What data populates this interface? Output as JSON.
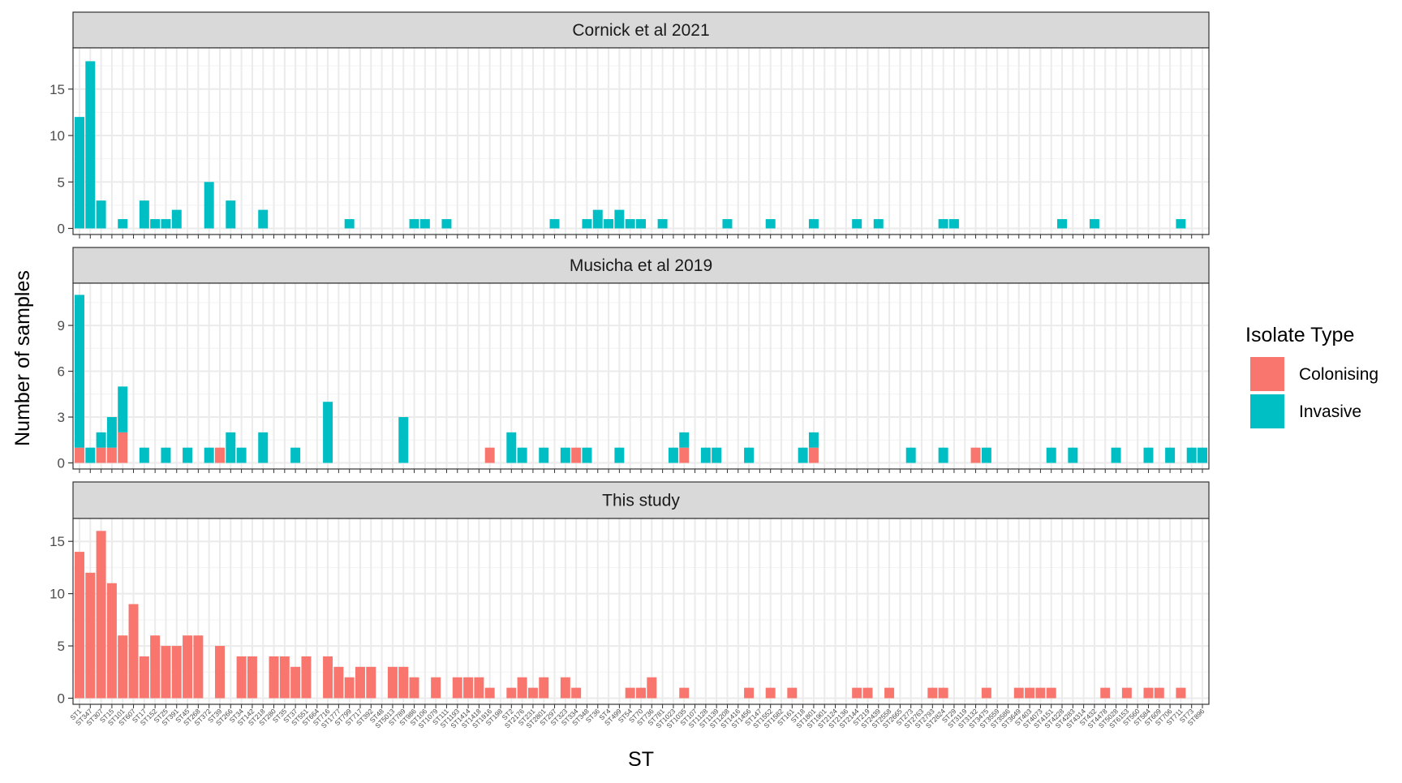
{
  "chart_data": {
    "type": "bar",
    "stacked": true,
    "xlabel": "ST",
    "ylabel": "Number of samples",
    "legend": {
      "title": "Isolate Type",
      "position": "right",
      "items": [
        {
          "name": "Colonising",
          "color": "#F8766D"
        },
        {
          "name": "Invasive",
          "color": "#00BFC4"
        }
      ]
    },
    "grid": true,
    "categories": [
      "ST1",
      "ST347",
      "ST307",
      "ST15",
      "ST101",
      "ST607",
      "ST17",
      "ST152",
      "ST25",
      "ST391",
      "ST45",
      "ST268",
      "ST372",
      "ST39",
      "ST266",
      "ST34",
      "ST142",
      "ST218",
      "ST280",
      "ST35",
      "ST37",
      "ST551",
      "ST664",
      "ST716",
      "ST1777",
      "ST799",
      "ST717",
      "ST392",
      "ST48",
      "ST5013",
      "ST789",
      "ST986",
      "ST106",
      "ST1079",
      "ST111",
      "ST1193",
      "ST1414",
      "ST1418",
      "ST1916",
      "ST198",
      "ST2",
      "ST2176",
      "ST231",
      "ST2801",
      "ST297",
      "ST323",
      "ST334",
      "ST348",
      "ST36",
      "ST4",
      "ST499",
      "ST54",
      "ST70",
      "ST736",
      "ST781",
      "ST1023",
      "ST1035",
      "ST107",
      "ST1128",
      "ST1139",
      "ST1208",
      "ST1416",
      "ST1456",
      "ST147",
      "ST1552",
      "ST1582",
      "ST161",
      "ST18",
      "ST1801",
      "ST1901",
      "ST2124",
      "ST2136",
      "ST2144",
      "ST219",
      "ST2439",
      "ST2558",
      "ST2665",
      "ST273",
      "ST2763",
      "ST2793",
      "ST2824",
      "ST29",
      "ST3119",
      "ST3132",
      "ST3475",
      "ST3559",
      "ST3586",
      "ST3649",
      "ST403",
      "ST4073",
      "ST4151",
      "ST4228",
      "ST4283",
      "ST4314",
      "ST432",
      "ST4478",
      "ST5028",
      "ST6153",
      "ST560",
      "ST584",
      "ST609",
      "ST706",
      "ST711",
      "ST73",
      "ST896"
    ],
    "panels": [
      {
        "title": "Cornick et al 2021",
        "ylim": [
          0,
          19
        ],
        "yticks": [
          0,
          5,
          10,
          15
        ],
        "series": [
          {
            "name": "Colonising",
            "values": [
              0,
              0,
              0,
              0,
              0,
              0,
              0,
              0,
              0,
              0,
              0,
              0,
              0,
              0,
              0,
              0,
              0,
              0,
              0,
              0,
              0,
              0,
              0,
              0,
              0,
              0,
              0,
              0,
              0,
              0,
              0,
              0,
              0,
              0,
              0,
              0,
              0,
              0,
              0,
              0,
              0,
              0,
              0,
              0,
              0,
              0,
              0,
              0,
              0,
              0,
              0,
              0,
              0,
              0,
              0,
              0,
              0,
              0,
              0,
              0,
              0,
              0,
              0,
              0,
              0,
              0,
              0,
              0,
              0,
              0,
              0,
              0,
              0,
              0,
              0,
              0,
              0,
              0,
              0,
              0,
              0,
              0,
              0,
              0,
              0,
              0,
              0,
              0,
              0,
              0,
              0,
              0,
              0,
              0,
              0,
              0,
              0,
              0,
              0,
              0,
              0,
              0,
              0,
              0
            ]
          },
          {
            "name": "Invasive",
            "values": [
              12,
              18,
              3,
              0,
              1,
              0,
              3,
              1,
              1,
              2,
              0,
              0,
              5,
              0,
              3,
              0,
              0,
              2,
              0,
              0,
              0,
              0,
              0,
              0,
              0,
              1,
              0,
              0,
              0,
              0,
              0,
              1,
              1,
              0,
              1,
              0,
              0,
              0,
              0,
              0,
              0,
              0,
              0,
              0,
              1,
              0,
              0,
              1,
              2,
              1,
              2,
              1,
              1,
              0,
              1,
              0,
              0,
              0,
              0,
              0,
              1,
              0,
              0,
              0,
              1,
              0,
              0,
              0,
              1,
              0,
              0,
              0,
              1,
              0,
              1,
              0,
              0,
              0,
              0,
              0,
              1,
              1,
              0,
              0,
              0,
              0,
              0,
              0,
              0,
              0,
              0,
              1,
              0,
              0,
              1,
              0,
              0,
              0,
              0,
              0,
              0,
              0,
              1,
              0,
              0
            ]
          }
        ]
      },
      {
        "title": "Musicha et al 2019",
        "ylim": [
          0,
          11.5
        ],
        "yticks": [
          0,
          3,
          6,
          9
        ],
        "series": [
          {
            "name": "Colonising",
            "values": [
              1,
              0,
              1,
              1,
              2,
              0,
              0,
              0,
              0,
              0,
              0,
              0,
              0,
              1,
              0,
              0,
              0,
              0,
              0,
              0,
              0,
              0,
              0,
              0,
              0,
              0,
              0,
              0,
              0,
              0,
              0,
              0,
              0,
              0,
              0,
              0,
              0,
              0,
              1,
              0,
              0,
              0,
              0,
              0,
              0,
              0,
              1,
              0,
              0,
              0,
              0,
              0,
              0,
              0,
              0,
              0,
              1,
              0,
              0,
              0,
              0,
              0,
              0,
              0,
              0,
              0,
              0,
              0,
              1,
              0,
              0,
              0,
              0,
              0,
              0,
              0,
              0,
              0,
              0,
              0,
              0,
              0,
              0,
              1,
              0,
              0,
              0,
              0,
              0,
              0,
              0,
              0,
              0,
              0,
              0,
              0,
              0,
              0,
              0,
              0,
              0,
              0,
              0,
              0,
              0
            ]
          },
          {
            "name": "Invasive",
            "values": [
              10,
              1,
              1,
              2,
              3,
              0,
              1,
              0,
              1,
              0,
              1,
              0,
              1,
              0,
              2,
              1,
              0,
              2,
              0,
              0,
              1,
              0,
              0,
              4,
              0,
              0,
              0,
              0,
              0,
              0,
              3,
              0,
              0,
              0,
              0,
              0,
              0,
              0,
              0,
              0,
              2,
              1,
              0,
              1,
              0,
              1,
              0,
              1,
              0,
              0,
              1,
              0,
              0,
              0,
              0,
              1,
              1,
              0,
              1,
              1,
              0,
              0,
              1,
              0,
              0,
              0,
              0,
              1,
              1,
              0,
              0,
              0,
              0,
              0,
              0,
              0,
              0,
              1,
              0,
              0,
              1,
              0,
              0,
              0,
              1,
              0,
              0,
              0,
              0,
              0,
              1,
              0,
              1,
              0,
              0,
              0,
              1,
              0,
              0,
              1,
              0,
              1,
              0,
              1,
              1
            ]
          }
        ]
      },
      {
        "title": "This study",
        "ylim": [
          0,
          16.8
        ],
        "yticks": [
          0,
          5,
          10,
          15
        ],
        "series": [
          {
            "name": "Colonising",
            "values": [
              14,
              12,
              16,
              11,
              6,
              9,
              4,
              6,
              5,
              5,
              6,
              6,
              0,
              5,
              0,
              4,
              4,
              0,
              4,
              4,
              3,
              4,
              0,
              4,
              3,
              2,
              3,
              3,
              0,
              3,
              3,
              2,
              0,
              2,
              0,
              2,
              2,
              2,
              1,
              0,
              1,
              2,
              1,
              2,
              0,
              2,
              1,
              0,
              0,
              0,
              0,
              1,
              1,
              2,
              0,
              0,
              1,
              0,
              0,
              0,
              0,
              0,
              1,
              0,
              1,
              0,
              1,
              0,
              0,
              0,
              0,
              0,
              1,
              1,
              0,
              1,
              0,
              0,
              0,
              1,
              1,
              0,
              0,
              0,
              1,
              0,
              0,
              1,
              1,
              1,
              1,
              0,
              0,
              0,
              0,
              1,
              0,
              1,
              0,
              1,
              1,
              0,
              1,
              0,
              0
            ]
          },
          {
            "name": "Invasive",
            "values": [
              0,
              0,
              0,
              0,
              0,
              0,
              0,
              0,
              0,
              0,
              0,
              0,
              0,
              0,
              0,
              0,
              0,
              0,
              0,
              0,
              0,
              0,
              0,
              0,
              0,
              0,
              0,
              0,
              0,
              0,
              0,
              0,
              0,
              0,
              0,
              0,
              0,
              0,
              0,
              0,
              0,
              0,
              0,
              0,
              0,
              0,
              0,
              0,
              0,
              0,
              0,
              0,
              0,
              0,
              0,
              0,
              0,
              0,
              0,
              0,
              0,
              0,
              0,
              0,
              0,
              0,
              0,
              0,
              0,
              0,
              0,
              0,
              0,
              0,
              0,
              0,
              0,
              0,
              0,
              0,
              0,
              0,
              0,
              0,
              0,
              0,
              0,
              0,
              0,
              0,
              0,
              0,
              0,
              0,
              0,
              0,
              0,
              0,
              0,
              0,
              0,
              0,
              0,
              0,
              0
            ]
          }
        ]
      }
    ]
  }
}
